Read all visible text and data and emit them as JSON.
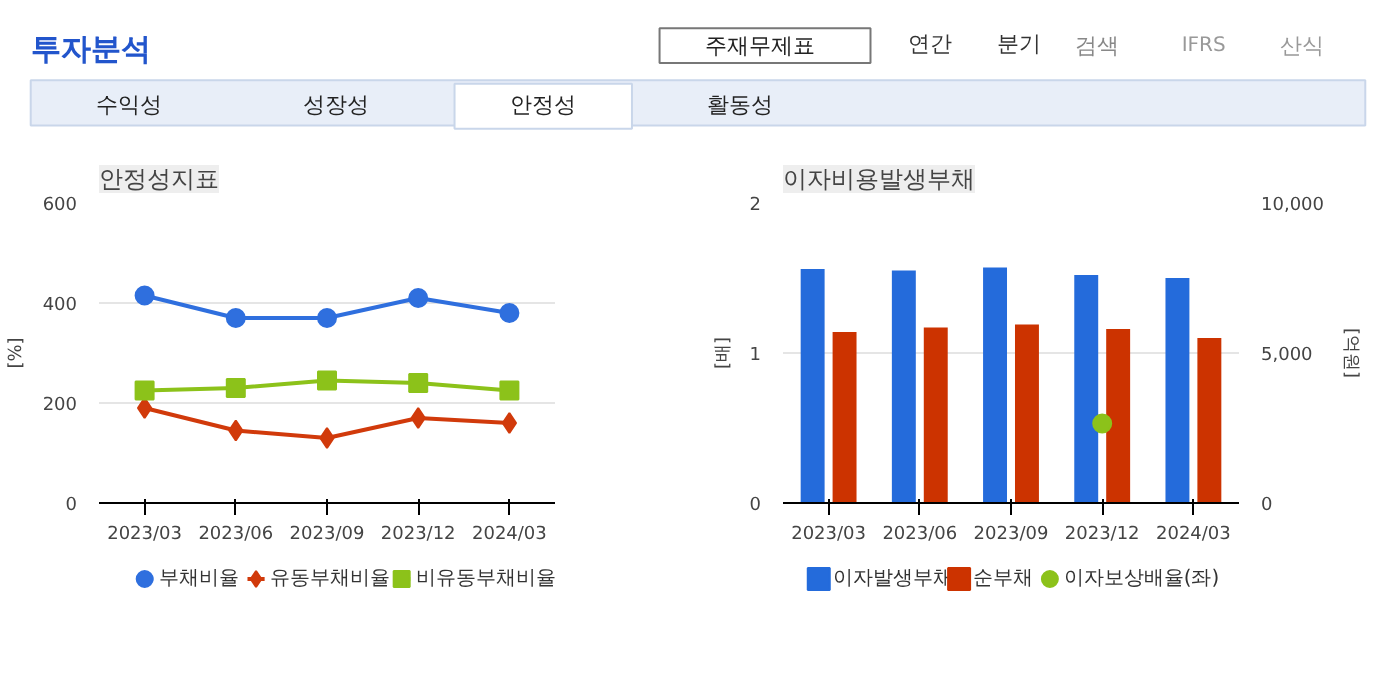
{
  "chart_data": [
    {
      "type": "other",
      "annotations": [
        "투자분석",
        "주재무제표",
        "연간",
        "분기",
        "검색",
        "IFRS",
        "산식",
        "수익성",
        "성장성",
        "안정성",
        "활동성"
      ]
    },
    {
      "type": "line",
      "title": "안정성지표",
      "ylabel": "[%]",
      "categories": [
        "2023/03",
        "2023/06",
        "2023/09",
        "2023/12",
        "2024/03"
      ],
      "ylim": [
        0,
        600
      ],
      "yticks": [
        0,
        200,
        400,
        600
      ],
      "grid": "y",
      "legend": "bottom",
      "series": [
        {
          "name": "부채비율",
          "color": "#2f6fde",
          "marker": "circle",
          "values": [
            415,
            370,
            370,
            410,
            380
          ]
        },
        {
          "name": "유동부채비율",
          "color": "#d13a0b",
          "marker": "diamond",
          "values": [
            190,
            145,
            130,
            170,
            160
          ]
        },
        {
          "name": "비유동부채비율",
          "color": "#8cc21a",
          "marker": "square",
          "values": [
            225,
            230,
            245,
            240,
            225
          ]
        }
      ]
    },
    {
      "type": "bar",
      "title": "이자비용발생부채",
      "ylabel": "[배]",
      "y2label": "[억원]",
      "categories": [
        "2023/03",
        "2023/06",
        "2023/09",
        "2023/12",
        "2024/03"
      ],
      "ylim": [
        0,
        2
      ],
      "yticks": [
        0,
        1,
        2
      ],
      "y2lim": [
        0,
        10000
      ],
      "y2ticks": [
        0,
        {
          "value": 5000,
          "label": "5,000"
        },
        {
          "value": 10000,
          "label": "10,000"
        }
      ],
      "grid": "y",
      "legend": "bottom",
      "series": [
        {
          "name": "이자발생부채",
          "color": "#246bdb",
          "axis": "y2",
          "values": [
            7800,
            7750,
            7850,
            7600,
            7500
          ]
        },
        {
          "name": "순부채",
          "color": "#cc3300",
          "axis": "y2",
          "values": [
            5700,
            5850,
            5950,
            5800,
            5500
          ]
        },
        {
          "name": "이자보상배율(좌)",
          "type": "scatter",
          "marker": "circle",
          "color": "#8cc21a",
          "values": [
            null,
            null,
            null,
            0.53,
            null
          ]
        }
      ]
    }
  ]
}
